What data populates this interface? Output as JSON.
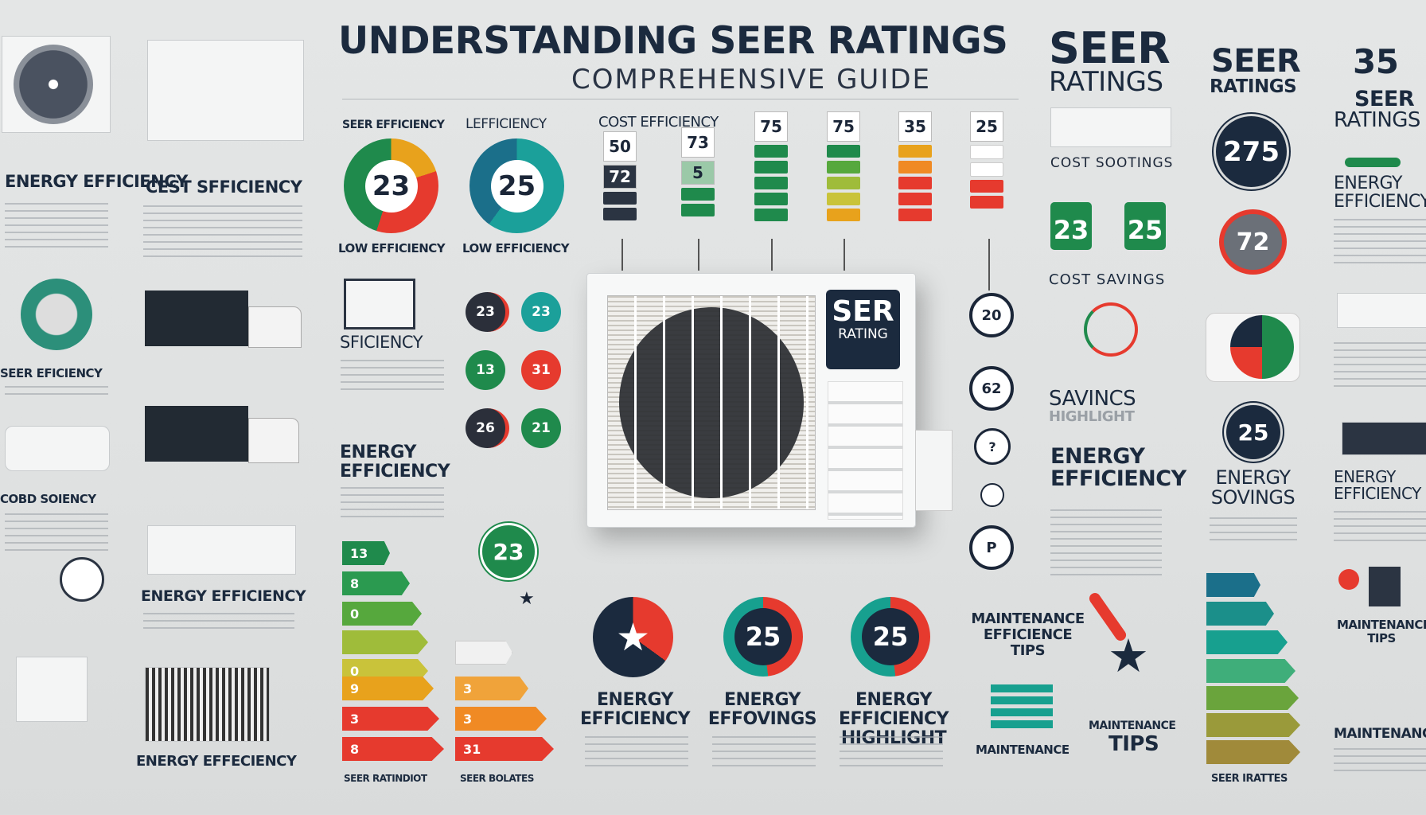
{
  "header": {
    "title": "UNDERSTANDING SEER RATINGS",
    "subtitle": "COMPREHENSIVE GUIDE"
  },
  "colors": {
    "navy": "#1b2a3e",
    "green": "#1f8a4c",
    "teal": "#17a08f",
    "red": "#e63a2e",
    "orange": "#f08a24",
    "yellow": "#c9c33a"
  },
  "left": {
    "energy_efficiency": "ENERGY EFFICIENCY",
    "seer_eficiency": "SEER EFICIENCY",
    "cobd_soiency": "COBD SOIENCY"
  },
  "col2": {
    "cest": "CEST SFFICIENCY",
    "energy1": "ENERGY EFFICIENCY",
    "energy2": "ENERGY EFFECIENCY"
  },
  "col3": {
    "seer_efficiency": "SEER EFFICIENCY",
    "gauge_value": "23",
    "low": "LOW EFFICIENCY",
    "sficiency": "SFICIENCY",
    "energy": "ENERGY EFFICIENCY",
    "bar_labels": [
      "13",
      "8",
      "0",
      "",
      "0",
      "9",
      "3",
      "8"
    ],
    "footer": "SEER RATINDIOT"
  },
  "col4": {
    "lefficiency": "LEFFICIENCY",
    "gauge_value": "25",
    "low": "LOW EFFICIENCY",
    "circles": [
      "23",
      "23",
      "13",
      "31",
      "26",
      "21"
    ],
    "big_circle": "23",
    "bar_labels": [
      "",
      "3",
      "3",
      "31"
    ],
    "footer": "SEER BOLATES"
  },
  "center": {
    "cost_efficiency": "COST EFFICIENCY",
    "strips": [
      {
        "top": "50",
        "mid": "72"
      },
      {
        "top": "73",
        "mid": "5"
      },
      {
        "top": "75",
        "mid": ""
      },
      {
        "top": "75",
        "mid": ""
      },
      {
        "top": "35",
        "mid": ""
      },
      {
        "top": "25",
        "mid": ""
      }
    ],
    "ac_label_1": "SER",
    "ac_label_2": "RATING",
    "side_circles": [
      "20",
      "62",
      "?",
      "",
      "P"
    ]
  },
  "bottom": {
    "circle_values": [
      "",
      "25",
      "25"
    ],
    "labels": [
      "ENERGY EFFICIENCY",
      "ENERGY EFFOVINGS",
      "ENERGY EFFICIENCY HIGHLIGHT"
    ],
    "maint_tips": "MAINTENANCE EFFICIENCE TIPS",
    "maintenance": "MAINTENANCE",
    "maintenance_tips_1": "MAINTENANCE",
    "maintenance_tips_2": "TIPS"
  },
  "right1": {
    "title_1": "SEER",
    "title_2": "RATINGS",
    "box_label": "COST SOOTINGS",
    "tiles": [
      "23",
      "25"
    ],
    "cost_savings": "COST SAVINGS",
    "savings_highlight_1": "SAVINCS",
    "savings_highlight_2": "HIGHLIGHT",
    "energy": "ENERGY EFFICIENCY"
  },
  "right2": {
    "title_1": "SEER",
    "title_2": "RATINGS",
    "circle_275": "275",
    "circle_72": "72",
    "circle_25": "25",
    "energy_sovings": "ENERGY SOVINGS",
    "footer": "SEER IRATTES"
  },
  "right3": {
    "number": "35",
    "title_1": "SEER",
    "title_2": "RATINGS",
    "energy1": "ENERGY EFFICIENCY",
    "energy2": "ENERGY EFFICIENCY",
    "maint_tips": "MAINTENANCE TIPS",
    "maintenance": "MAINTENANCE"
  }
}
